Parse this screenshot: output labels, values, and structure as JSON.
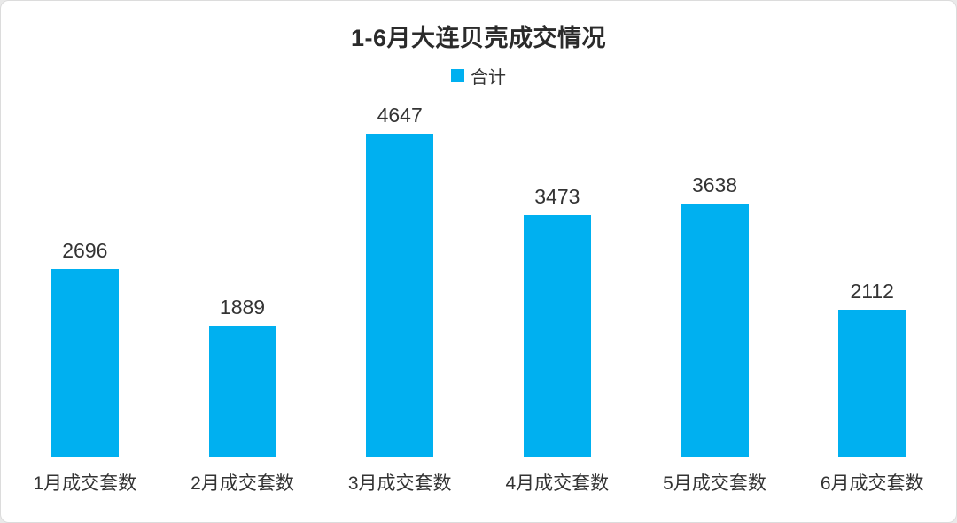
{
  "page": {
    "background_color": "#ffffff",
    "text_color": "#333333"
  },
  "chart_data": {
    "type": "bar",
    "title": "1-6月大连贝壳成交情况",
    "series_name": "合计",
    "categories": [
      "1月成交套数",
      "2月成交套数",
      "3月成交套数",
      "4月成交套数",
      "5月成交套数",
      "6月成交套数"
    ],
    "values": [
      2696,
      1889,
      4647,
      3473,
      3638,
      2112
    ],
    "bar_color": "#00b0f0",
    "ylim": [
      0,
      4647
    ],
    "grid": false,
    "axes_visible": false,
    "data_labels": true,
    "legend_position": "top"
  }
}
